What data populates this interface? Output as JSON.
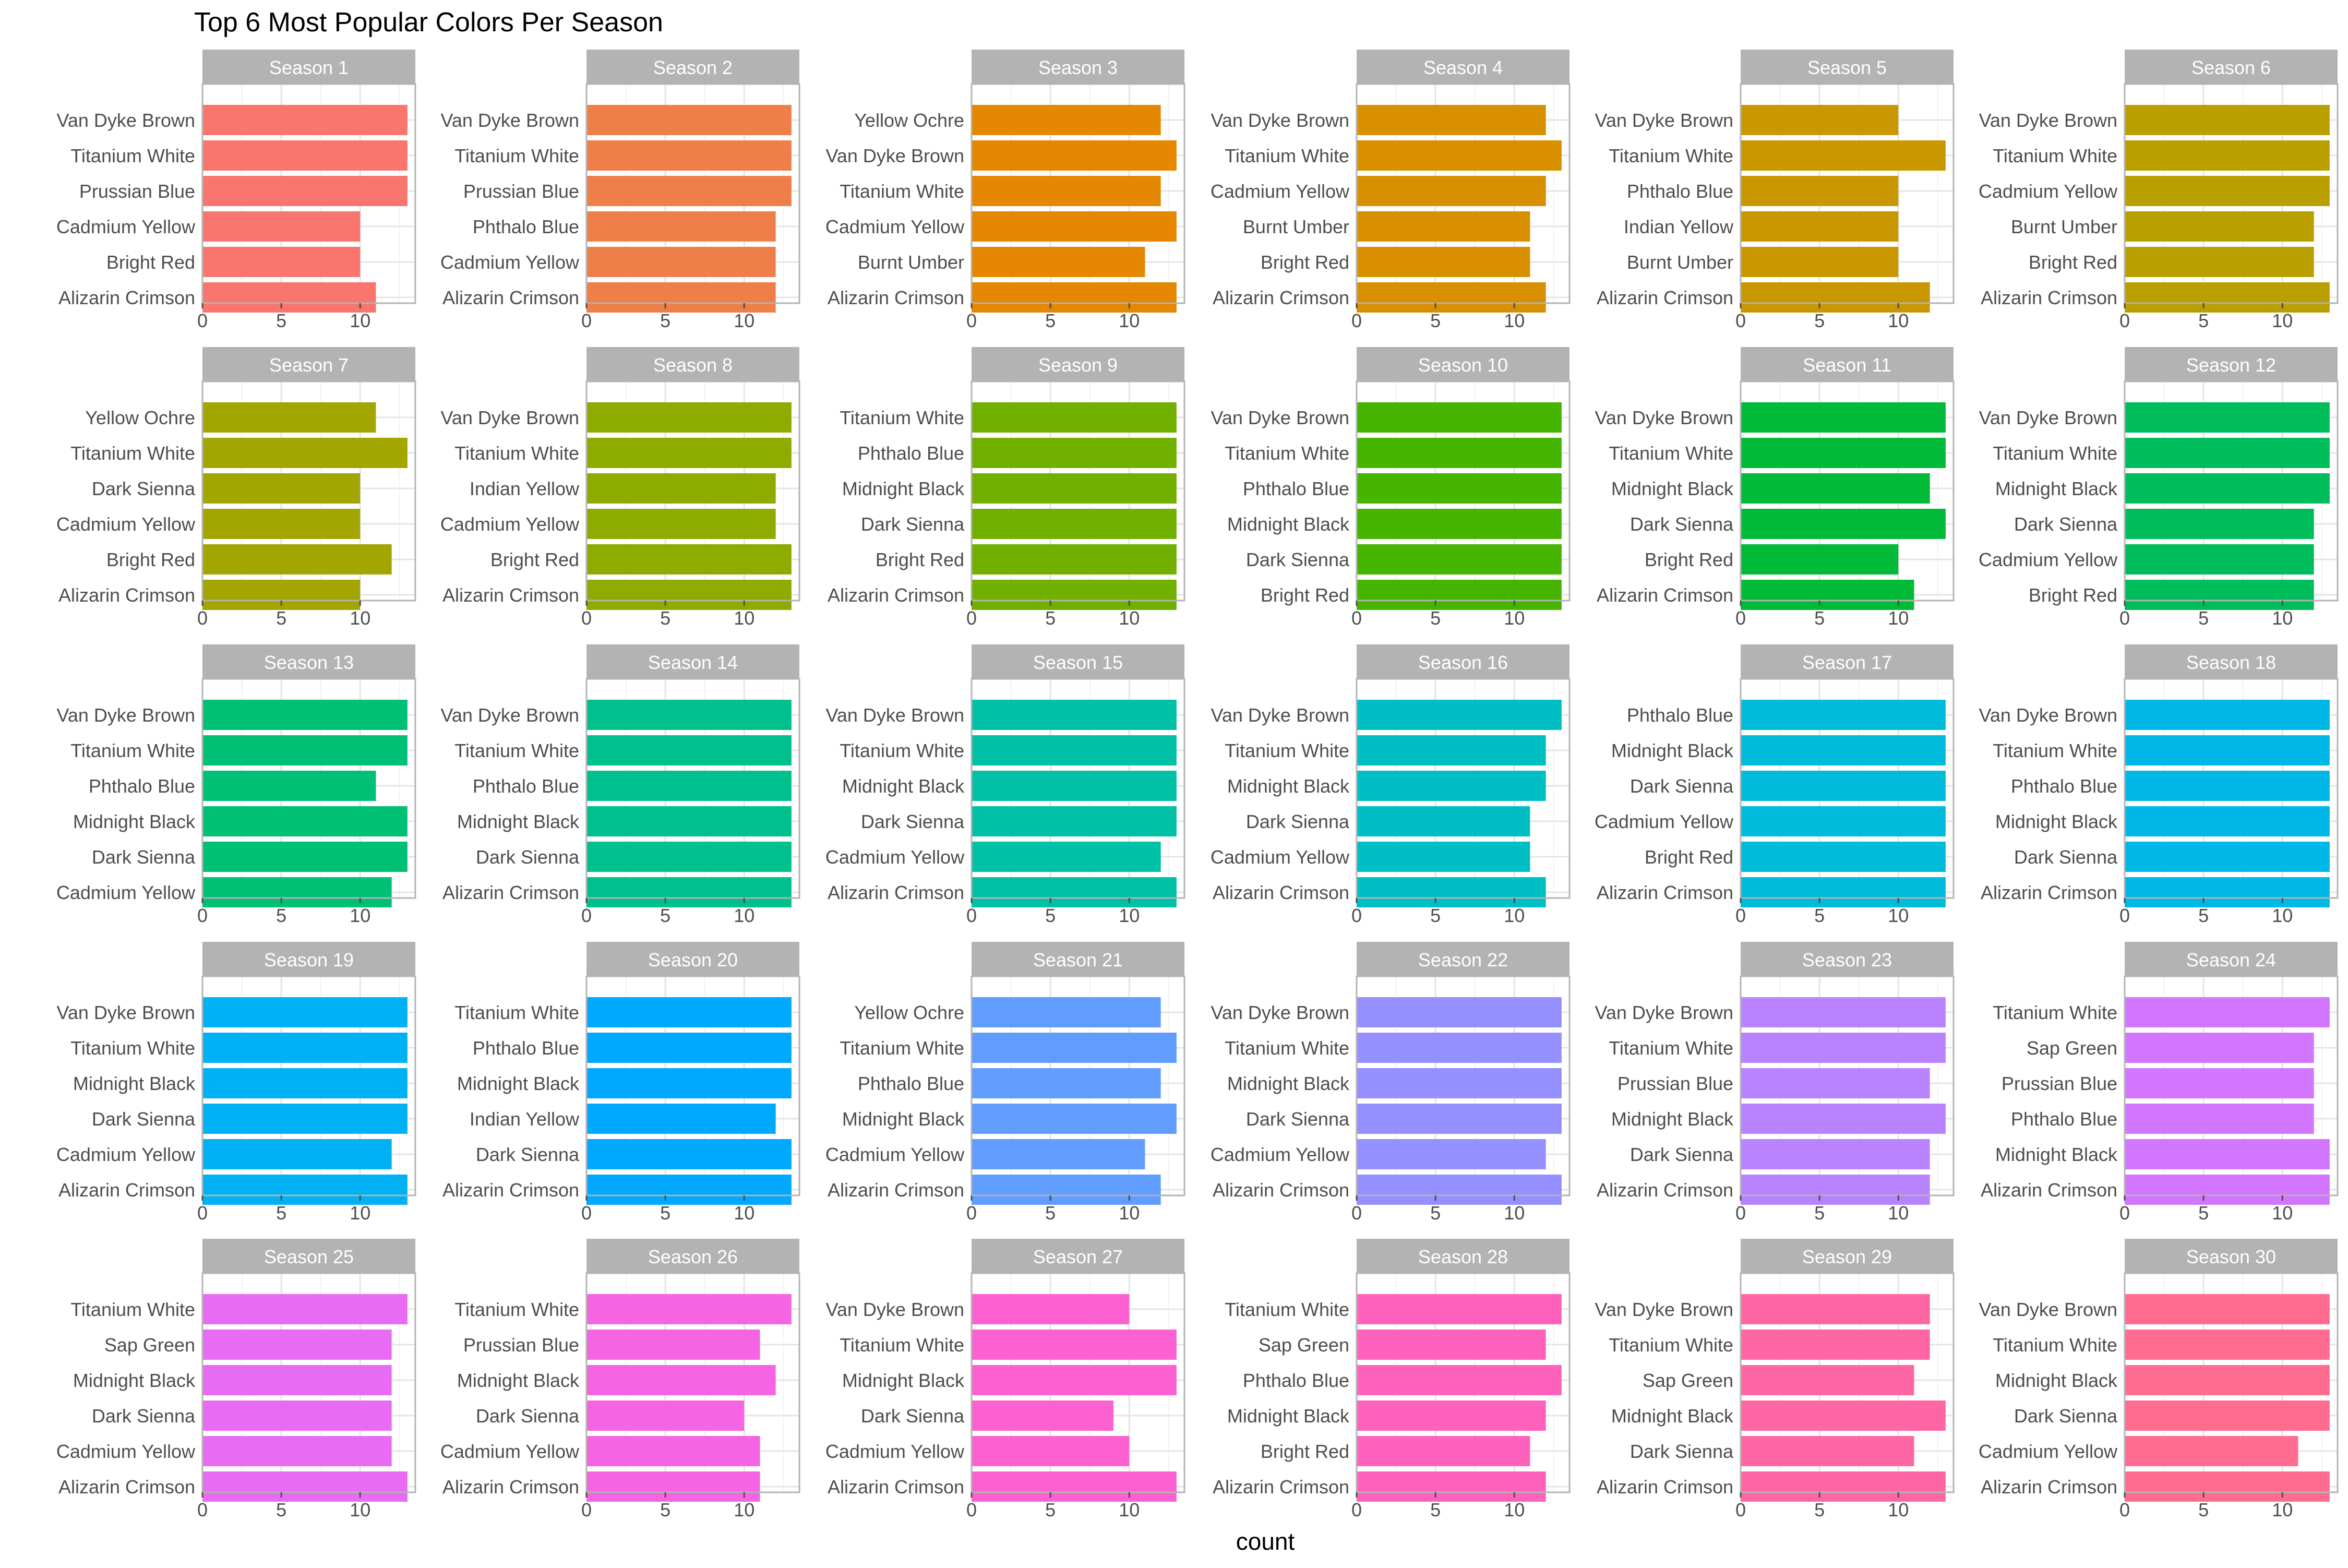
{
  "chart_data": {
    "type": "bar",
    "orientation": "horizontal",
    "layout": "small-multiples",
    "title": "Top 6 Most Popular Colors Per Season",
    "xlabel": "count",
    "ylabel": "",
    "xlim": [
      0,
      13.5
    ],
    "xticks": [
      0,
      5,
      10
    ],
    "grid": true,
    "legend": "none",
    "panels": [
      {
        "label": "Season 1",
        "color": "#F8766D",
        "categories": [
          "Van Dyke Brown",
          "Titanium White",
          "Prussian Blue",
          "Cadmium Yellow",
          "Bright Red",
          "Alizarin Crimson"
        ],
        "values": [
          13,
          13,
          13,
          10,
          10,
          11
        ]
      },
      {
        "label": "Season 2",
        "color": "#EF7F49",
        "categories": [
          "Van Dyke Brown",
          "Titanium White",
          "Prussian Blue",
          "Phthalo Blue",
          "Cadmium Yellow",
          "Alizarin Crimson"
        ],
        "values": [
          13,
          13,
          13,
          12,
          12,
          12
        ]
      },
      {
        "label": "Season 3",
        "color": "#E58700",
        "categories": [
          "Yellow Ochre",
          "Van Dyke Brown",
          "Titanium White",
          "Cadmium Yellow",
          "Burnt Umber",
          "Alizarin Crimson"
        ],
        "values": [
          12,
          13,
          12,
          13,
          11,
          13
        ]
      },
      {
        "label": "Season 4",
        "color": "#D89000",
        "categories": [
          "Van Dyke Brown",
          "Titanium White",
          "Cadmium Yellow",
          "Burnt Umber",
          "Bright Red",
          "Alizarin Crimson"
        ],
        "values": [
          12,
          13,
          12,
          11,
          11,
          12
        ]
      },
      {
        "label": "Season 5",
        "color": "#C99800",
        "categories": [
          "Van Dyke Brown",
          "Titanium White",
          "Phthalo Blue",
          "Indian Yellow",
          "Burnt Umber",
          "Alizarin Crimson"
        ],
        "values": [
          10,
          13,
          10,
          10,
          10,
          12
        ]
      },
      {
        "label": "Season 6",
        "color": "#B9A000",
        "categories": [
          "Van Dyke Brown",
          "Titanium White",
          "Cadmium Yellow",
          "Burnt Umber",
          "Bright Red",
          "Alizarin Crimson"
        ],
        "values": [
          13,
          13,
          13,
          12,
          12,
          13
        ]
      },
      {
        "label": "Season 7",
        "color": "#A3A500",
        "categories": [
          "Yellow Ochre",
          "Titanium White",
          "Dark Sienna",
          "Cadmium Yellow",
          "Bright Red",
          "Alizarin Crimson"
        ],
        "values": [
          11,
          13,
          10,
          10,
          12,
          10
        ]
      },
      {
        "label": "Season 8",
        "color": "#8EAB00",
        "categories": [
          "Van Dyke Brown",
          "Titanium White",
          "Indian Yellow",
          "Cadmium Yellow",
          "Bright Red",
          "Alizarin Crimson"
        ],
        "values": [
          13,
          13,
          12,
          12,
          13,
          13
        ]
      },
      {
        "label": "Season 9",
        "color": "#72B000",
        "categories": [
          "Titanium White",
          "Phthalo Blue",
          "Midnight Black",
          "Dark Sienna",
          "Bright Red",
          "Alizarin Crimson"
        ],
        "values": [
          13,
          13,
          13,
          13,
          13,
          13
        ]
      },
      {
        "label": "Season 10",
        "color": "#45B500",
        "categories": [
          "Van Dyke Brown",
          "Titanium White",
          "Phthalo Blue",
          "Midnight Black",
          "Dark Sienna",
          "Bright Red"
        ],
        "values": [
          13,
          13,
          13,
          13,
          13,
          13
        ]
      },
      {
        "label": "Season 11",
        "color": "#00BA38",
        "categories": [
          "Van Dyke Brown",
          "Titanium White",
          "Midnight Black",
          "Dark Sienna",
          "Bright Red",
          "Alizarin Crimson"
        ],
        "values": [
          13,
          13,
          12,
          13,
          10,
          11
        ]
      },
      {
        "label": "Season 12",
        "color": "#00BD5C",
        "categories": [
          "Van Dyke Brown",
          "Titanium White",
          "Midnight Black",
          "Dark Sienna",
          "Cadmium Yellow",
          "Bright Red"
        ],
        "values": [
          13,
          13,
          13,
          12,
          12,
          12
        ]
      },
      {
        "label": "Season 13",
        "color": "#00C076",
        "categories": [
          "Van Dyke Brown",
          "Titanium White",
          "Phthalo Blue",
          "Midnight Black",
          "Dark Sienna",
          "Cadmium Yellow"
        ],
        "values": [
          13,
          13,
          11,
          13,
          13,
          12
        ]
      },
      {
        "label": "Season 14",
        "color": "#00C08D",
        "categories": [
          "Van Dyke Brown",
          "Titanium White",
          "Phthalo Blue",
          "Midnight Black",
          "Dark Sienna",
          "Alizarin Crimson"
        ],
        "values": [
          13,
          13,
          13,
          13,
          13,
          13
        ]
      },
      {
        "label": "Season 15",
        "color": "#00C0A6",
        "categories": [
          "Van Dyke Brown",
          "Titanium White",
          "Midnight Black",
          "Dark Sienna",
          "Cadmium Yellow",
          "Alizarin Crimson"
        ],
        "values": [
          13,
          13,
          13,
          13,
          12,
          13
        ]
      },
      {
        "label": "Season 16",
        "color": "#00BFC4",
        "categories": [
          "Van Dyke Brown",
          "Titanium White",
          "Midnight Black",
          "Dark Sienna",
          "Cadmium Yellow",
          "Alizarin Crimson"
        ],
        "values": [
          13,
          12,
          12,
          11,
          11,
          12
        ]
      },
      {
        "label": "Season 17",
        "color": "#00BBDA",
        "categories": [
          "Phthalo Blue",
          "Midnight Black",
          "Dark Sienna",
          "Cadmium Yellow",
          "Bright Red",
          "Alizarin Crimson"
        ],
        "values": [
          13,
          13,
          13,
          13,
          13,
          13
        ]
      },
      {
        "label": "Season 18",
        "color": "#00B8E7",
        "categories": [
          "Van Dyke Brown",
          "Titanium White",
          "Phthalo Blue",
          "Midnight Black",
          "Dark Sienna",
          "Alizarin Crimson"
        ],
        "values": [
          13,
          13,
          13,
          13,
          13,
          13
        ]
      },
      {
        "label": "Season 19",
        "color": "#00B2F3",
        "categories": [
          "Van Dyke Brown",
          "Titanium White",
          "Midnight Black",
          "Dark Sienna",
          "Cadmium Yellow",
          "Alizarin Crimson"
        ],
        "values": [
          13,
          13,
          13,
          13,
          12,
          13
        ]
      },
      {
        "label": "Season 20",
        "color": "#00A9FF",
        "categories": [
          "Titanium White",
          "Phthalo Blue",
          "Midnight Black",
          "Indian Yellow",
          "Dark Sienna",
          "Alizarin Crimson"
        ],
        "values": [
          13,
          13,
          13,
          12,
          13,
          13
        ]
      },
      {
        "label": "Season 21",
        "color": "#619CFF",
        "categories": [
          "Yellow Ochre",
          "Titanium White",
          "Phthalo Blue",
          "Midnight Black",
          "Cadmium Yellow",
          "Alizarin Crimson"
        ],
        "values": [
          12,
          13,
          12,
          13,
          11,
          12
        ]
      },
      {
        "label": "Season 22",
        "color": "#9590FF",
        "categories": [
          "Van Dyke Brown",
          "Titanium White",
          "Midnight Black",
          "Dark Sienna",
          "Cadmium Yellow",
          "Alizarin Crimson"
        ],
        "values": [
          13,
          13,
          13,
          13,
          12,
          13
        ]
      },
      {
        "label": "Season 23",
        "color": "#B983FF",
        "categories": [
          "Van Dyke Brown",
          "Titanium White",
          "Prussian Blue",
          "Midnight Black",
          "Dark Sienna",
          "Alizarin Crimson"
        ],
        "values": [
          13,
          13,
          12,
          13,
          12,
          12
        ]
      },
      {
        "label": "Season 24",
        "color": "#D376FF",
        "categories": [
          "Titanium White",
          "Sap Green",
          "Prussian Blue",
          "Phthalo Blue",
          "Midnight Black",
          "Alizarin Crimson"
        ],
        "values": [
          13,
          12,
          12,
          12,
          13,
          13
        ]
      },
      {
        "label": "Season 25",
        "color": "#E76BF3",
        "categories": [
          "Titanium White",
          "Sap Green",
          "Midnight Black",
          "Dark Sienna",
          "Cadmium Yellow",
          "Alizarin Crimson"
        ],
        "values": [
          13,
          12,
          12,
          12,
          12,
          13
        ]
      },
      {
        "label": "Season 26",
        "color": "#F564E3",
        "categories": [
          "Titanium White",
          "Prussian Blue",
          "Midnight Black",
          "Dark Sienna",
          "Cadmium Yellow",
          "Alizarin Crimson"
        ],
        "values": [
          13,
          11,
          12,
          10,
          11,
          11
        ]
      },
      {
        "label": "Season 27",
        "color": "#FD61D1",
        "categories": [
          "Van Dyke Brown",
          "Titanium White",
          "Midnight Black",
          "Dark Sienna",
          "Cadmium Yellow",
          "Alizarin Crimson"
        ],
        "values": [
          10,
          13,
          13,
          9,
          10,
          13
        ]
      },
      {
        "label": "Season 28",
        "color": "#FF62BC",
        "categories": [
          "Titanium White",
          "Sap Green",
          "Phthalo Blue",
          "Midnight Black",
          "Bright Red",
          "Alizarin Crimson"
        ],
        "values": [
          13,
          12,
          13,
          12,
          11,
          12
        ]
      },
      {
        "label": "Season 29",
        "color": "#FF67A4",
        "categories": [
          "Van Dyke Brown",
          "Titanium White",
          "Sap Green",
          "Midnight Black",
          "Dark Sienna",
          "Alizarin Crimson"
        ],
        "values": [
          12,
          12,
          11,
          13,
          11,
          13
        ]
      },
      {
        "label": "Season 30",
        "color": "#FF6C90",
        "categories": [
          "Van Dyke Brown",
          "Titanium White",
          "Midnight Black",
          "Dark Sienna",
          "Cadmium Yellow",
          "Alizarin Crimson"
        ],
        "values": [
          13,
          13,
          13,
          13,
          11,
          13
        ]
      }
    ]
  }
}
